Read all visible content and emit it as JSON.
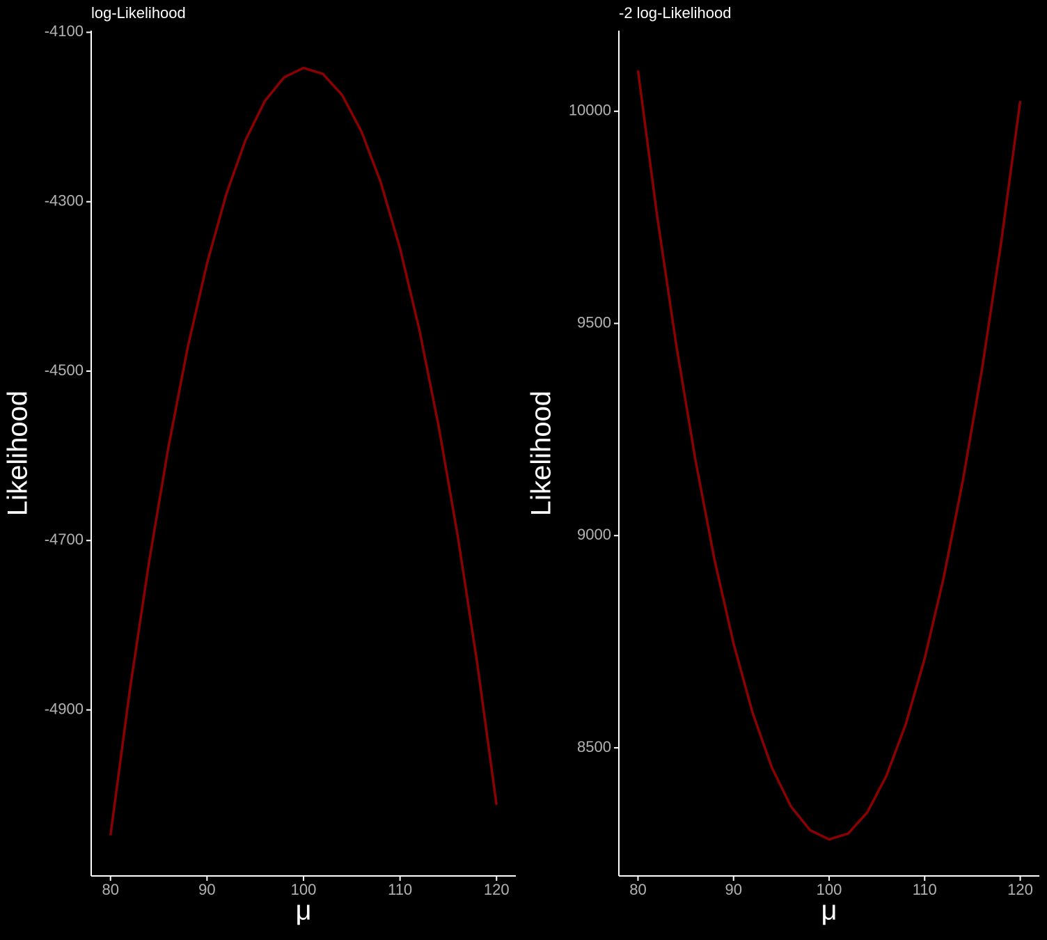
{
  "chart_data": [
    {
      "type": "line",
      "title": "log-Likelihood",
      "x_label": "μ",
      "y_label": "Likelihood",
      "x": [
        80,
        82,
        84,
        86,
        88,
        90,
        92,
        94,
        96,
        98,
        100,
        102,
        104,
        106,
        108,
        110,
        112,
        114,
        116,
        118,
        120
      ],
      "series": [
        {
          "color": "#8b0000",
          "values": [
            -5048,
            -4877,
            -4725,
            -4590,
            -4472,
            -4373,
            -4291,
            -4227,
            -4181,
            -4153,
            -4142,
            -4149,
            -4174,
            -4217,
            -4277,
            -4355,
            -4451,
            -4565,
            -4696,
            -4845,
            -5012
          ]
        }
      ],
      "xlim": [
        78,
        122
      ],
      "xticks": [
        80,
        90,
        100,
        110,
        120
      ],
      "ylim": [
        -5096,
        -4098
      ],
      "yticks": [
        -4900,
        -4700,
        -4500,
        -4300,
        -4100
      ],
      "grid": false
    },
    {
      "type": "line",
      "title": "-2 log-Likelihood",
      "x_label": "μ",
      "y_label": "Likelihood",
      "x": [
        80,
        82,
        84,
        86,
        88,
        90,
        92,
        94,
        96,
        98,
        100,
        102,
        104,
        106,
        108,
        110,
        112,
        114,
        116,
        118,
        120
      ],
      "series": [
        {
          "color": "#8b0000",
          "values": [
            10096,
            9754,
            9450,
            9180,
            8944,
            8746,
            8582,
            8454,
            8362,
            8306,
            8284,
            8298,
            8348,
            8434,
            8554,
            8710,
            8902,
            9130,
            9392,
            9690,
            10024
          ]
        }
      ],
      "xlim": [
        78,
        122
      ],
      "xticks": [
        80,
        90,
        100,
        110,
        120
      ],
      "ylim": [
        8198,
        10190
      ],
      "yticks": [
        8500,
        9000,
        9500,
        10000
      ],
      "grid": false
    }
  ]
}
